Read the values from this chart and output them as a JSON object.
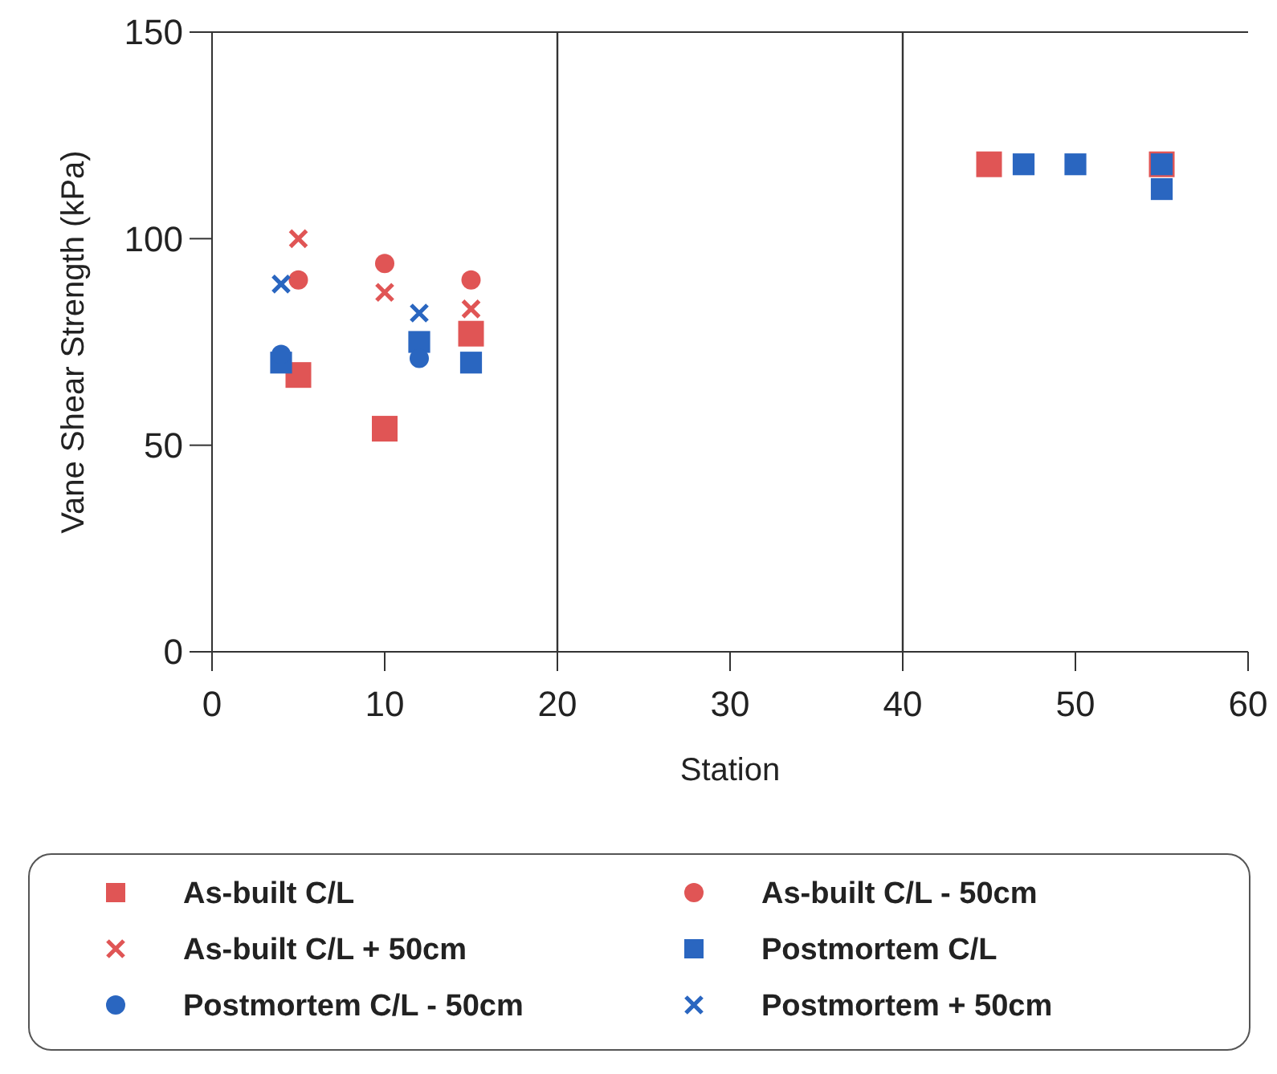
{
  "chart_data": {
    "type": "scatter",
    "xlabel": "Station",
    "ylabel": "Vane Shear Strength (kPa)",
    "xlim": [
      0,
      60
    ],
    "xticks": [
      0,
      10,
      20,
      30,
      40,
      50,
      60
    ],
    "ylim": [
      0,
      150
    ],
    "yticks": [
      0,
      50,
      100,
      150
    ],
    "grid": false,
    "legend": "bottom",
    "ref_lines": [
      {
        "axis": "x",
        "value": 20,
        "color": "#333333"
      },
      {
        "axis": "x",
        "value": 40,
        "color": "#333333"
      }
    ],
    "series": [
      {
        "name": "As-built C/L",
        "color": "#e05555",
        "marker": "square",
        "x": [
          5,
          10,
          15,
          45,
          55
        ],
        "values": [
          67,
          54,
          77,
          118,
          118
        ]
      },
      {
        "name": "As-built C/L - 50cm",
        "color": "#e05555",
        "marker": "circle",
        "x": [
          5,
          10,
          15
        ],
        "values": [
          90,
          94,
          90
        ]
      },
      {
        "name": "As-built C/L + 50cm",
        "color": "#e05555",
        "marker": "cross",
        "x": [
          5,
          10,
          15
        ],
        "values": [
          100,
          87,
          83
        ]
      },
      {
        "name": "Postmortem C/L",
        "color": "#2a66c0",
        "marker": "square",
        "x": [
          4,
          12,
          15,
          47,
          50,
          55,
          55
        ],
        "values": [
          70,
          75,
          70,
          118,
          118,
          118,
          112
        ]
      },
      {
        "name": "Postmortem C/L - 50cm",
        "color": "#2a66c0",
        "marker": "circle",
        "x": [
          4,
          12
        ],
        "values": [
          72,
          71
        ]
      },
      {
        "name": "Postmortem + 50cm",
        "color": "#2a66c0",
        "marker": "cross",
        "x": [
          4,
          12
        ],
        "values": [
          89,
          82
        ]
      }
    ]
  }
}
